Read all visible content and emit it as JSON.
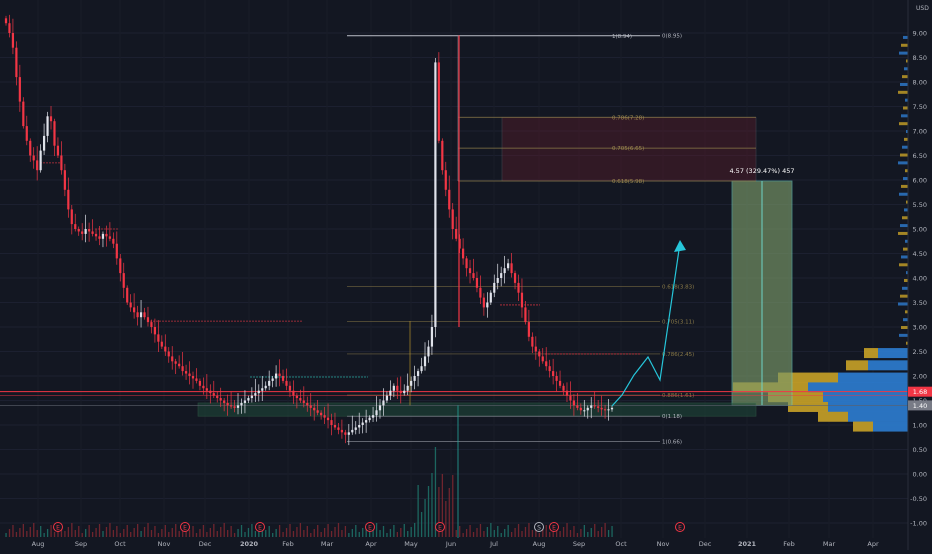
{
  "chart_data": {
    "type": "candlestick",
    "currency_label": "USD",
    "ylim": [
      -1.1,
      9.4
    ],
    "y_ticks": [
      "9.00",
      "8.50",
      "8.00",
      "7.50",
      "7.00",
      "6.50",
      "6.00",
      "5.50",
      "5.00",
      "4.50",
      "4.00",
      "3.50",
      "3.00",
      "2.50",
      "2.00",
      "1.50",
      "1.00",
      "0.50",
      "0.00",
      "-0.50",
      "-1.00"
    ],
    "x_ticks": [
      "Aug",
      "Sep",
      "Oct",
      "Nov",
      "Dec",
      "2020",
      "Feb",
      "Mar",
      "Apr",
      "May",
      "Jun",
      "Jul",
      "Aug",
      "Sep",
      "Oct",
      "Nov",
      "Dec",
      "2021",
      "Feb",
      "Mar",
      "Apr"
    ],
    "price_badges": [
      {
        "label": "1.68",
        "value": 1.68,
        "color": "#f23645"
      },
      {
        "label": "1.40",
        "value": 1.4,
        "color": "#787b86"
      }
    ],
    "fib_top": [
      {
        "label": "1(8.94)",
        "value": 8.94
      },
      {
        "label": "0(8.95)",
        "value": 8.95
      },
      {
        "label": "0.786(7.28)",
        "value": 7.28
      },
      {
        "label": "0.705(6.65)",
        "value": 6.65
      },
      {
        "label": "0.618(5.98)",
        "value": 5.98
      }
    ],
    "fib_bottom": [
      {
        "label": "0.618(3.83)",
        "value": 3.83
      },
      {
        "label": "0.705(3.11)",
        "value": 3.11
      },
      {
        "label": "0.786(2.45)",
        "value": 2.45
      },
      {
        "label": "0.886(1.61)",
        "value": 1.61
      },
      {
        "label": "0(1.18)",
        "value": 1.18
      },
      {
        "label": "1(0.66)",
        "value": 0.66
      }
    ],
    "measure_label": "4.57 (329.47%) 457",
    "event_markers": [
      "E",
      "E",
      "E",
      "E",
      "E",
      "S",
      "E",
      "E"
    ],
    "candles_close": [
      9.2,
      9.0,
      8.7,
      8.1,
      7.6,
      7.1,
      6.8,
      6.5,
      6.4,
      6.2,
      6.6,
      6.9,
      7.3,
      7.2,
      6.7,
      6.5,
      6.2,
      5.8,
      5.4,
      5.1,
      5.0,
      4.95,
      4.9,
      5.0,
      4.95,
      4.9,
      4.85,
      4.8,
      4.9,
      4.85,
      4.8,
      4.7,
      4.4,
      4.1,
      3.8,
      3.5,
      3.4,
      3.3,
      3.2,
      3.3,
      3.2,
      3.1,
      3.0,
      2.85,
      2.7,
      2.6,
      2.5,
      2.4,
      2.3,
      2.25,
      2.2,
      2.1,
      2.05,
      2.0,
      1.95,
      1.9,
      1.8,
      1.75,
      1.7,
      1.65,
      1.6,
      1.55,
      1.5,
      1.45,
      1.4,
      1.38,
      1.35,
      1.4,
      1.45,
      1.5,
      1.55,
      1.6,
      1.65,
      1.7,
      1.75,
      1.8,
      1.9,
      1.95,
      2.05,
      2.0,
      1.9,
      1.8,
      1.7,
      1.6,
      1.55,
      1.5,
      1.45,
      1.4,
      1.35,
      1.3,
      1.25,
      1.2,
      1.15,
      1.1,
      1.0,
      0.95,
      0.9,
      0.85,
      0.8,
      0.85,
      0.9,
      0.95,
      1.0,
      1.05,
      1.1,
      1.15,
      1.2,
      1.3,
      1.4,
      1.5,
      1.6,
      1.7,
      1.8,
      1.7,
      1.65,
      1.7,
      1.8,
      1.9,
      2.0,
      2.1,
      2.2,
      2.4,
      2.6,
      3.0,
      8.4,
      6.8,
      6.2,
      5.8,
      5.4,
      5.0,
      4.8,
      4.6,
      4.4,
      4.2,
      4.1,
      4.0,
      3.8,
      3.6,
      3.4,
      3.5,
      3.7,
      3.9,
      4.0,
      4.1,
      4.2,
      4.3,
      4.1,
      3.9,
      3.7,
      3.4,
      3.1,
      2.8,
      2.6,
      2.5,
      2.4,
      2.3,
      2.2,
      2.1,
      2.0,
      1.9,
      1.8,
      1.7,
      1.6,
      1.5,
      1.4,
      1.35,
      1.3,
      1.3,
      1.35,
      1.4,
      1.38,
      1.35,
      1.32,
      1.3,
      1.32,
      1.35
    ]
  }
}
